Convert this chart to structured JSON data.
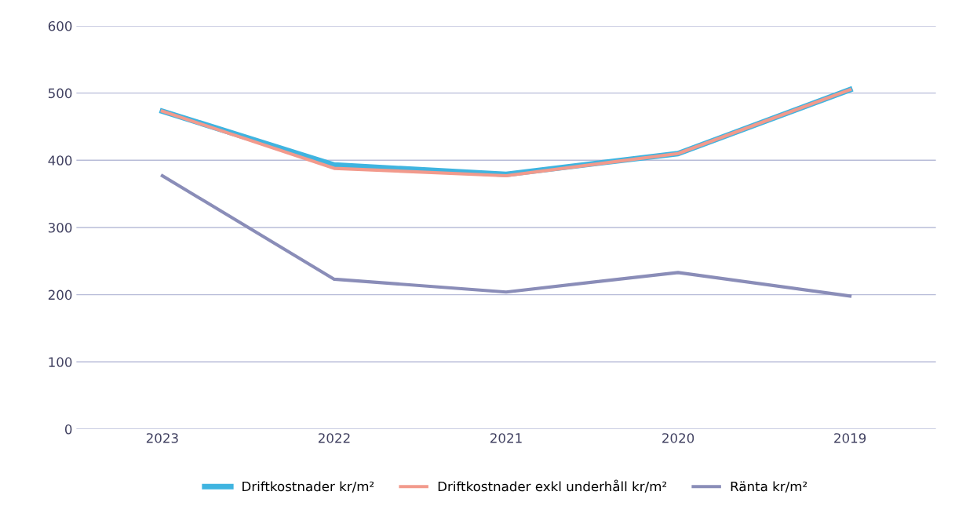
{
  "chart_data": {
    "type": "line",
    "categories": [
      "2023",
      "2022",
      "2021",
      "2020",
      "2019"
    ],
    "series": [
      {
        "name": "Driftkostnader kr/m²",
        "color": "#3fb4e0",
        "values": [
          473,
          393,
          379,
          410,
          505
        ]
      },
      {
        "name": "Driftkostnader exkl underhåll kr/m²",
        "color": "#f29a8c",
        "values": [
          473,
          388,
          377,
          410,
          505
        ]
      },
      {
        "name": "Ränta kr/m²",
        "color": "#8a8db8",
        "values": [
          377,
          223,
          204,
          233,
          198
        ]
      }
    ],
    "ylim": [
      0,
      600
    ],
    "yticks": [
      0,
      100,
      200,
      300,
      400,
      500,
      600
    ],
    "grid": "y",
    "legend": "bottom",
    "marker": "none",
    "line_style": "solid"
  }
}
